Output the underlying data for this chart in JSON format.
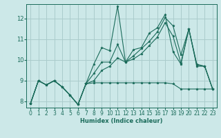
{
  "xlabel": "Humidex (Indice chaleur)",
  "xlim": [
    -0.5,
    23.5
  ],
  "ylim": [
    7.7,
    12.7
  ],
  "xticks": [
    0,
    1,
    2,
    3,
    4,
    5,
    6,
    7,
    8,
    9,
    10,
    11,
    12,
    13,
    14,
    15,
    16,
    17,
    18,
    19,
    20,
    21,
    22,
    23
  ],
  "yticks": [
    8,
    9,
    10,
    11,
    12
  ],
  "background_color": "#cce8e8",
  "grid_color": "#aacccc",
  "line_color": "#1a6b5a",
  "lines": [
    {
      "x": [
        0,
        1,
        2,
        3,
        4,
        5,
        6,
        7,
        8,
        9,
        10,
        11,
        12,
        13,
        14,
        15,
        16,
        17,
        18,
        19,
        20,
        21,
        22,
        23
      ],
      "y": [
        7.9,
        9.0,
        8.8,
        9.0,
        8.7,
        8.3,
        7.85,
        8.85,
        8.9,
        8.9,
        8.9,
        8.9,
        8.9,
        8.9,
        8.9,
        8.9,
        8.9,
        8.9,
        8.85,
        8.6,
        8.6,
        8.6,
        8.6,
        8.6
      ]
    },
    {
      "x": [
        0,
        1,
        2,
        3,
        4,
        5,
        6,
        7,
        8,
        9,
        10,
        11,
        12,
        13,
        14,
        15,
        16,
        17,
        18,
        19,
        20,
        21,
        22,
        23
      ],
      "y": [
        7.9,
        9.0,
        8.8,
        9.0,
        8.7,
        8.3,
        7.85,
        8.85,
        9.8,
        10.6,
        10.45,
        12.6,
        9.9,
        10.5,
        10.6,
        11.3,
        11.55,
        12.2,
        10.4,
        9.8,
        11.5,
        9.8,
        9.7,
        8.6
      ]
    },
    {
      "x": [
        0,
        1,
        2,
        3,
        4,
        5,
        6,
        7,
        8,
        9,
        10,
        11,
        12,
        13,
        14,
        15,
        16,
        17,
        18,
        19,
        20,
        21,
        22,
        23
      ],
      "y": [
        7.9,
        9.0,
        8.8,
        9.0,
        8.7,
        8.3,
        7.85,
        8.85,
        9.35,
        9.9,
        9.9,
        10.75,
        9.9,
        10.2,
        10.55,
        10.9,
        11.35,
        12.05,
        11.65,
        10.25,
        11.5,
        9.75,
        9.7,
        8.6
      ]
    },
    {
      "x": [
        0,
        1,
        2,
        3,
        4,
        5,
        6,
        7,
        8,
        9,
        10,
        11,
        12,
        13,
        14,
        15,
        16,
        17,
        18,
        19,
        20,
        21,
        22,
        23
      ],
      "y": [
        7.9,
        9.0,
        8.8,
        9.0,
        8.7,
        8.3,
        7.85,
        8.85,
        9.0,
        9.5,
        9.7,
        10.1,
        9.9,
        10.05,
        10.3,
        10.7,
        11.1,
        11.8,
        11.15,
        9.85,
        11.5,
        9.7,
        9.7,
        8.6
      ]
    }
  ]
}
